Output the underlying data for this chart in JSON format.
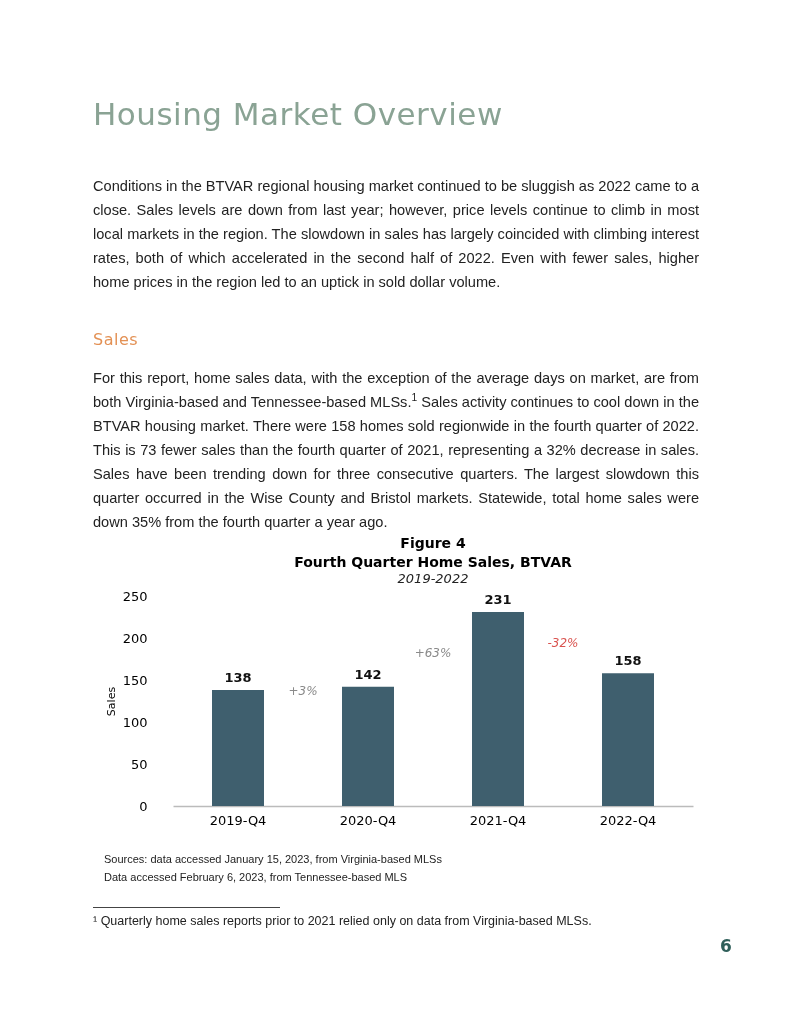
{
  "chart_data": {
    "type": "bar",
    "title": "Fourth Quarter Home Sales, BTVAR",
    "subtitle": "2019-2022",
    "ylabel": "Sales",
    "categories": [
      "2019-Q4",
      "2020-Q4",
      "2021-Q4",
      "2022-Q4"
    ],
    "values": [
      138,
      142,
      231,
      158
    ],
    "color": "#3f5f6e",
    "data_labels": true,
    "ylim": [
      0,
      250
    ],
    "yticks": [
      0,
      50,
      100,
      150,
      200,
      250
    ],
    "grid": false,
    "annotations": [
      "Housing Market Overview",
      "Conditions in the BTVAR regional housing market continued to be sluggish as 2022 came to a close. Sales levels are down from last year; however, price levels continue to climb in most local markets in the region. The slowdown in sales has largely coincided with climbing interest rates, both of which accelerated in the second half of 2022. Even with fewer sales, higher home prices in the region led to an uptick in sold dollar volume.",
      "Sales",
      "For this report, home sales data, with the exception of the average days on market, are from both Virginia-based and Tennessee-based MLSs.$^{1}$ Sales activity continues to cool down in the BTVAR housing market. There were 158 homes sold regionwide in the fourth quarter of 2022. This is 73 fewer sales than the fourth quarter of 2021, representing a 32% decrease in sales. Sales have been trending down for three consecutive quarters. The largest slowdown this quarter occurred in the Wise County and Bristol markets. Statewide, total home sales were down 35% from the fourth quarter a year ago.",
      "Figure 4",
      "+3%",
      "+63%",
      "-32%",
      "Sources: data accessed January 15, 2023, from Virginia-based MLSs",
      "Data accessed February 6, 2023, from Tennessee-based MLS",
      "¹ Quarterly home sales reports prior to 2021 relied only on data from Virginia-based MLSs.",
      "6"
    ]
  }
}
